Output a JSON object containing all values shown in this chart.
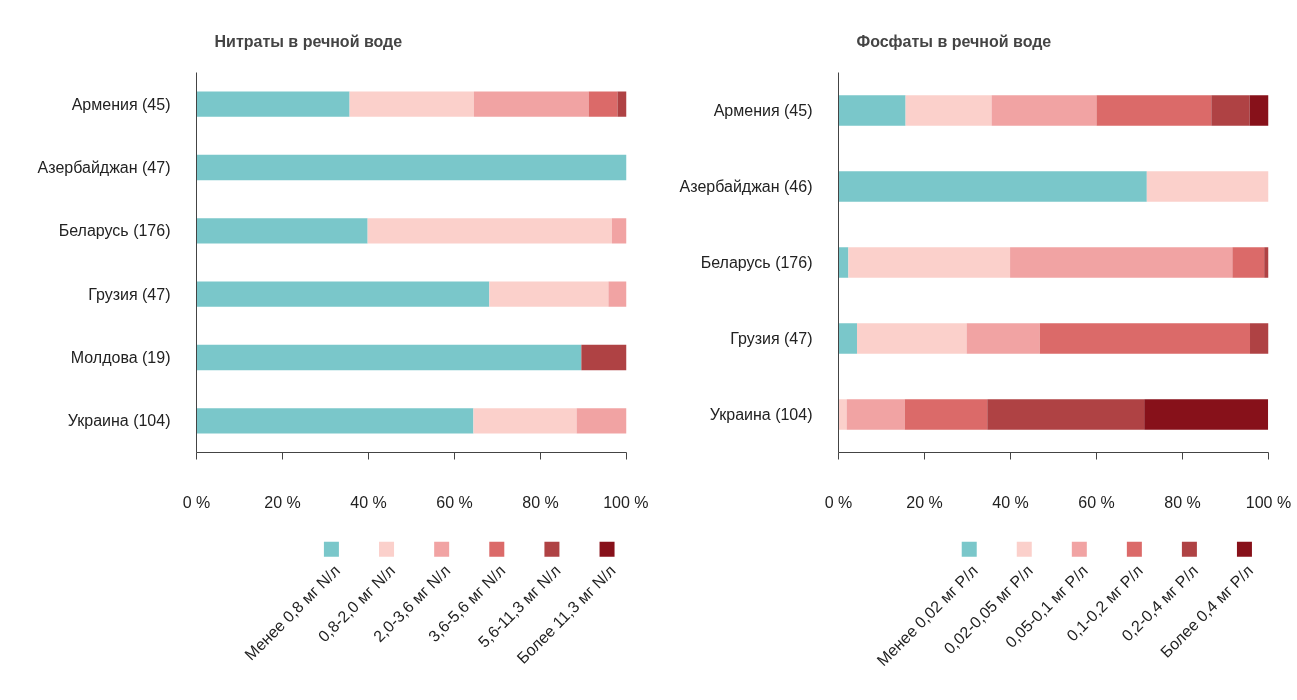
{
  "chart_data": [
    {
      "type": "bar",
      "title": "Нитраты в речной воде",
      "orientation": "horizontal",
      "stacked": true,
      "legend": "bottom",
      "grid": false,
      "categories": [
        "Армения (45)",
        "Азербайджан (47)",
        "Беларусь (176)",
        "Грузия (47)",
        "Молдова (19)",
        "Украина (104)"
      ],
      "xlim": [
        0,
        100
      ],
      "xticks": [
        {
          "value": 0,
          "label": "0 %"
        },
        {
          "value": 20,
          "label": "20 %"
        },
        {
          "value": 40,
          "label": "40 %"
        },
        {
          "value": 60,
          "label": "60 %"
        },
        {
          "value": 80,
          "label": "80 %"
        },
        {
          "value": 100,
          "label": "100 %"
        }
      ],
      "series": [
        {
          "name": "Менее 0,8 мг N/л",
          "color": "#7ac7ca",
          "values": [
            35.6,
            100,
            39.8,
            68.1,
            89.5,
            64.4
          ]
        },
        {
          "name": "0,8-2,0 мг N/л",
          "color": "#fbd0cb",
          "values": [
            28.9,
            0,
            56.8,
            27.7,
            0,
            24.0
          ]
        },
        {
          "name": "2,0-3,6 мг N/л",
          "color": "#f1a3a3",
          "values": [
            26.7,
            0,
            3.4,
            4.2,
            0,
            11.6
          ]
        },
        {
          "name": "3,6-5,6 мг N/л",
          "color": "#db6a69",
          "values": [
            6.7,
            0,
            0,
            0,
            0,
            0
          ]
        },
        {
          "name": "5,6-11,3 мг N/л",
          "color": "#af4244",
          "values": [
            2.1,
            0,
            0,
            0,
            10.5,
            0
          ]
        },
        {
          "name": "Более 11,3 мг N/л",
          "color": "#87111a",
          "values": [
            0,
            0,
            0,
            0,
            0,
            0
          ]
        }
      ]
    },
    {
      "type": "bar",
      "title": "Фосфаты в речной воде",
      "orientation": "horizontal",
      "stacked": true,
      "legend": "bottom",
      "grid": false,
      "categories": [
        "Армения (45)",
        "Азербайджан (46)",
        "Беларусь (176)",
        "Грузия (47)",
        "Украина (104)"
      ],
      "xlim": [
        0,
        100
      ],
      "xticks": [
        {
          "value": 0,
          "label": "0 %"
        },
        {
          "value": 20,
          "label": "20 %"
        },
        {
          "value": 40,
          "label": "40 %"
        },
        {
          "value": 60,
          "label": "60 %"
        },
        {
          "value": 80,
          "label": "80 %"
        },
        {
          "value": 100,
          "label": "100 %"
        }
      ],
      "series": [
        {
          "name": "Менее 0,02 мг P/л",
          "color": "#7ac7ca",
          "values": [
            15.6,
            71.7,
            2.3,
            4.3,
            0
          ]
        },
        {
          "name": "0,02-0,05 мг P/л",
          "color": "#fbd0cb",
          "values": [
            20.0,
            28.3,
            37.6,
            25.5,
            1.9
          ]
        },
        {
          "name": "0,05-0,1 мг P/л",
          "color": "#f1a3a3",
          "values": [
            24.4,
            0,
            51.7,
            17.0,
            13.5
          ]
        },
        {
          "name": "0,1-0,2 мг P/л",
          "color": "#db6a69",
          "values": [
            26.7,
            0,
            7.4,
            48.9,
            19.2
          ]
        },
        {
          "name": "0,2-0,4 мг P/л",
          "color": "#af4244",
          "values": [
            8.9,
            0,
            1.0,
            4.3,
            36.5
          ]
        },
        {
          "name": "Более 0,4 мг P/л",
          "color": "#87111a",
          "values": [
            4.4,
            0,
            0,
            0,
            28.8
          ]
        }
      ]
    }
  ]
}
